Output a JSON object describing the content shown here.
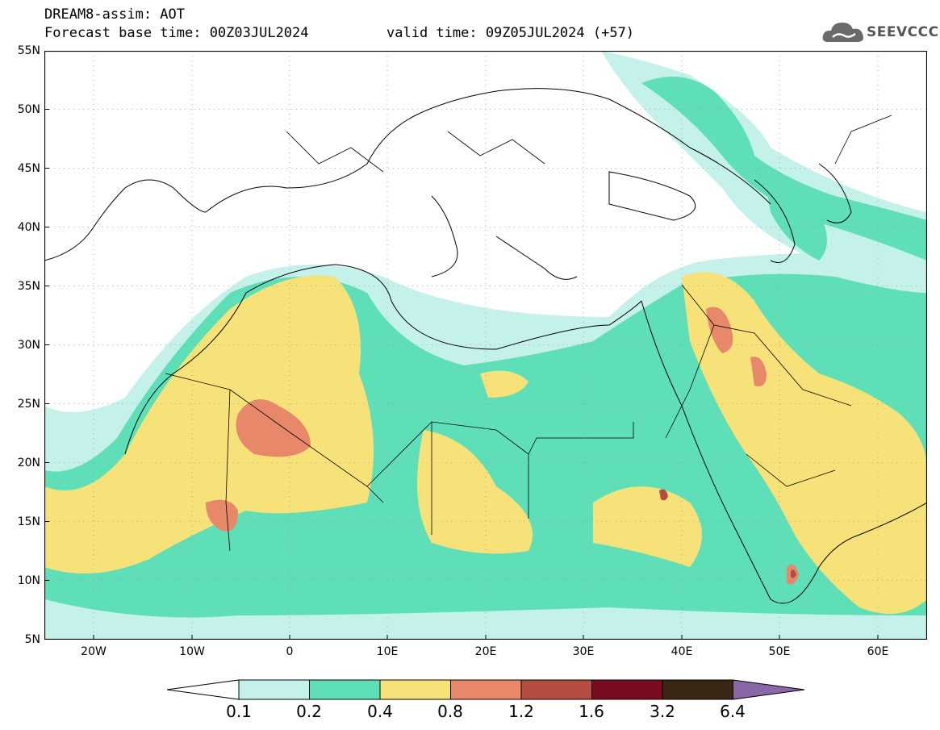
{
  "header": {
    "line1": "DREAM8-assim: AOT",
    "line2": "Forecast base time: 00Z03JUL2024",
    "valid": "valid time: 09Z05JUL2024 (+57)"
  },
  "logo": {
    "text": "SEEVCCC",
    "icon": "cloud-icon"
  },
  "map": {
    "lat_labels": [
      "55N",
      "50N",
      "45N",
      "40N",
      "35N",
      "30N",
      "25N",
      "20N",
      "15N",
      "10N",
      "5N"
    ],
    "lon_labels": [
      "20W",
      "10W",
      "0",
      "10E",
      "20E",
      "30E",
      "40E",
      "50E",
      "60E"
    ],
    "region": "North Africa, Europe and Middle East"
  },
  "colorbar": {
    "levels": [
      "0.1",
      "0.2",
      "0.4",
      "0.8",
      "1.2",
      "1.6",
      "3.2",
      "6.4"
    ],
    "colors": [
      "#ffffff",
      "#c4f1ea",
      "#5fdfb8",
      "#f6e278",
      "#e8886a",
      "#b44c3f",
      "#7a0c22",
      "#3a2615",
      "#8a68a8"
    ]
  }
}
